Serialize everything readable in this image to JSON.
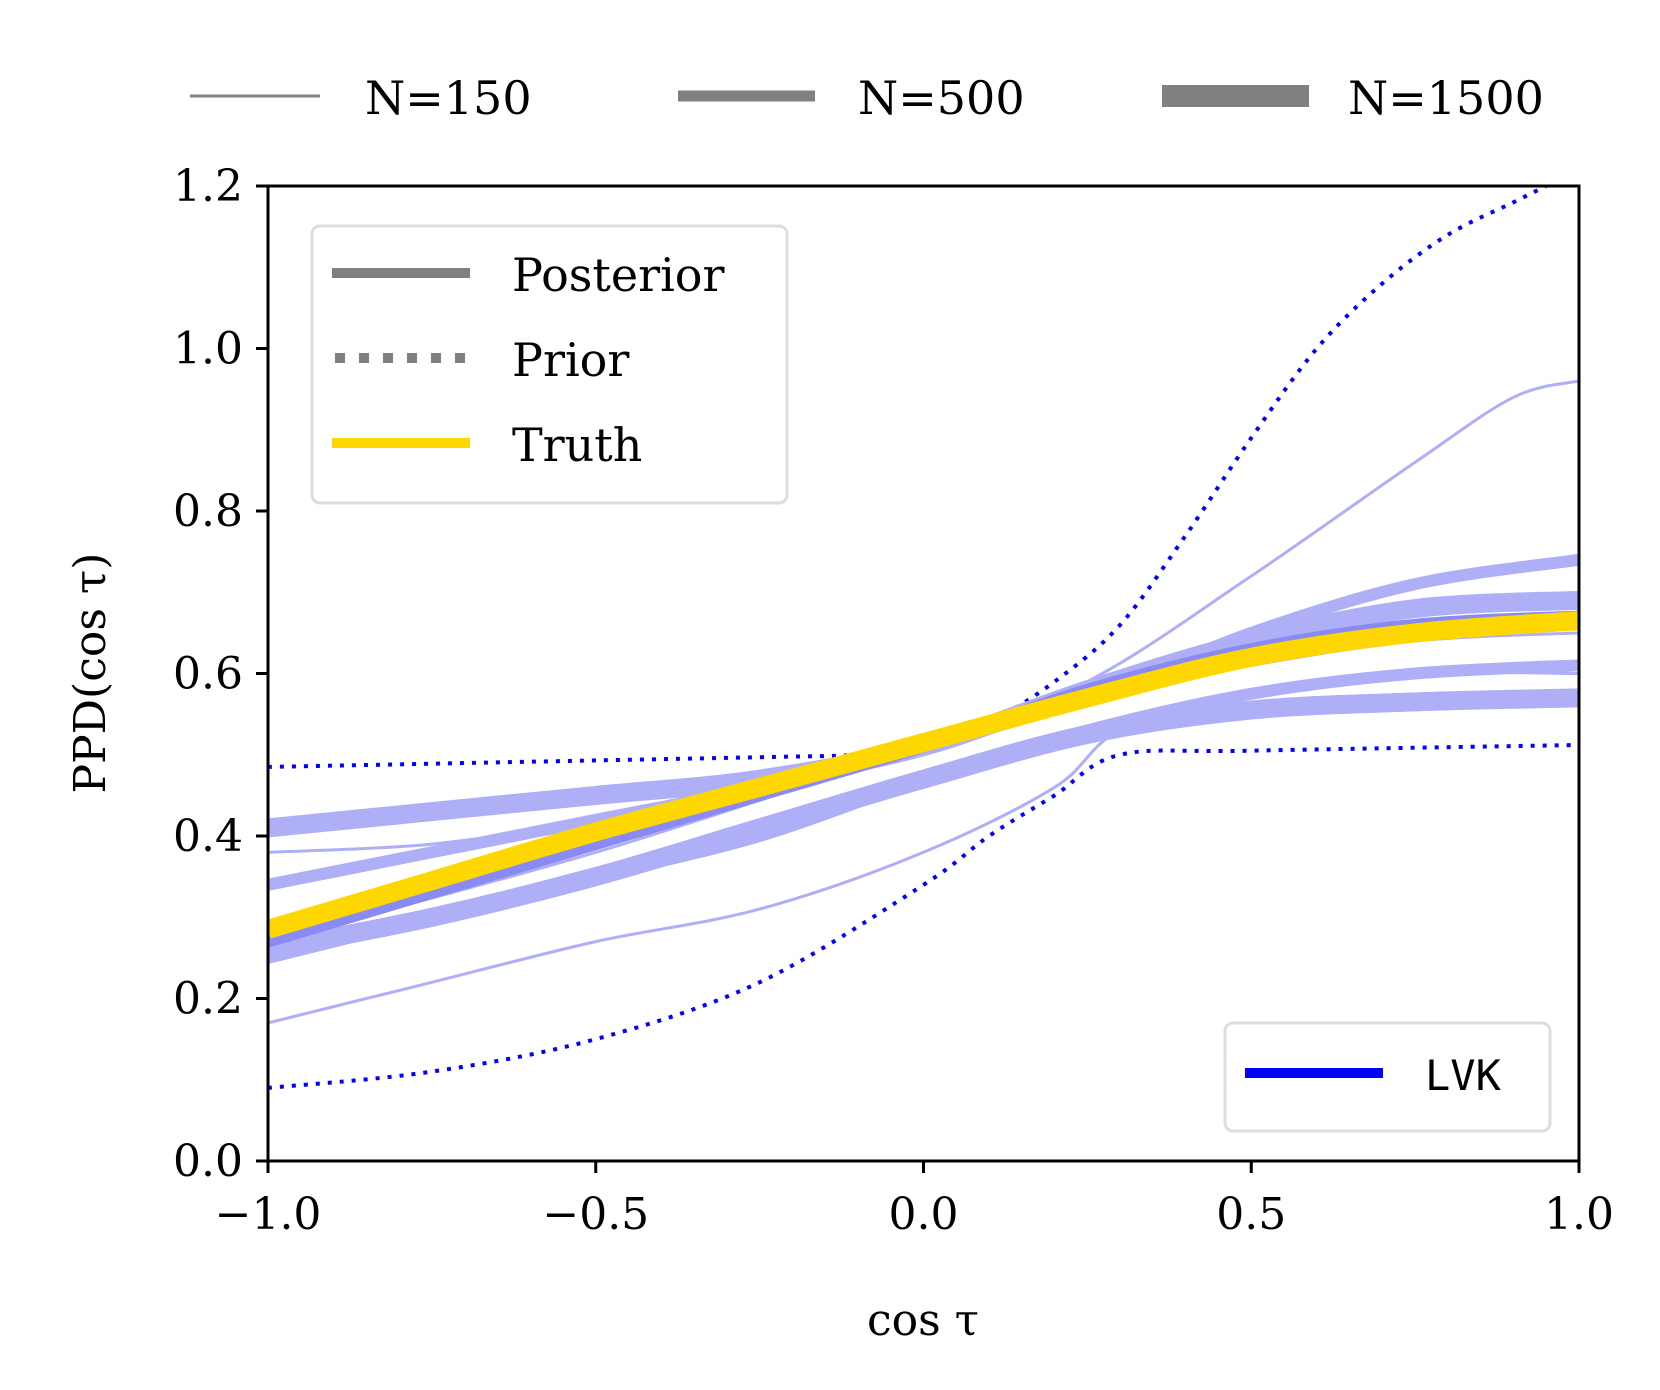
{
  "chart_data": {
    "type": "line",
    "title": "",
    "xlabel": "cos τ",
    "ylabel": "PPD(cos τ)",
    "xlim": [
      -1.0,
      1.0
    ],
    "ylim": [
      0.0,
      1.2
    ],
    "xticks": [
      -1.0,
      -0.5,
      0.0,
      0.5,
      1.0
    ],
    "xtick_labels": [
      "−1.0",
      "−0.5",
      "0.0",
      "0.5",
      "1.0"
    ],
    "yticks": [
      0.0,
      0.2,
      0.4,
      0.6,
      0.8,
      1.0,
      1.2
    ],
    "ytick_labels": [
      "0.0",
      "0.2",
      "0.4",
      "0.6",
      "0.8",
      "1.0",
      "1.2"
    ],
    "grid": false,
    "top_legend": [
      {
        "label": "N=150",
        "linewidth": "thin"
      },
      {
        "label": "N=500",
        "linewidth": "medium"
      },
      {
        "label": "N=1500",
        "linewidth": "thick"
      }
    ],
    "style_legend": [
      {
        "label": "Posterior",
        "style": "solid",
        "color": "#808080"
      },
      {
        "label": "Prior",
        "style": "dotted",
        "color": "#808080"
      },
      {
        "label": "Truth",
        "style": "solid",
        "color": "#FFD700"
      }
    ],
    "model_legend": [
      {
        "label": "LVK",
        "color": "#0000FF"
      }
    ],
    "series": [
      {
        "name": "Prior lower (LVK)",
        "style": "dotted",
        "color": "#0000FF",
        "x": [
          -1.0,
          -0.75,
          -0.5,
          -0.25,
          0.0,
          0.1,
          0.2,
          0.3,
          0.5,
          1.0
        ],
        "y": [
          0.09,
          0.11,
          0.15,
          0.22,
          0.34,
          0.4,
          0.45,
          0.5,
          0.505,
          0.512
        ]
      },
      {
        "name": "Prior upper (LVK)",
        "style": "dotted",
        "color": "#0000FF",
        "x": [
          -1.0,
          -0.75,
          -0.5,
          -0.25,
          -0.1,
          0.0,
          0.1,
          0.2,
          0.3,
          0.4,
          0.5,
          0.6,
          0.7,
          0.8,
          0.9,
          0.95
        ],
        "y": [
          0.485,
          0.489,
          0.493,
          0.497,
          0.5,
          0.51,
          0.54,
          0.59,
          0.66,
          0.77,
          0.89,
          1.0,
          1.08,
          1.14,
          1.18,
          1.2
        ]
      },
      {
        "name": "N=150 posterior lower",
        "style": "solid",
        "width": "thin",
        "color": "#AFAFF8",
        "x": [
          -1.0,
          -0.75,
          -0.5,
          -0.25,
          0.0,
          0.2,
          0.3,
          0.5,
          0.75,
          1.0
        ],
        "y": [
          0.17,
          0.22,
          0.27,
          0.31,
          0.38,
          0.46,
          0.53,
          0.58,
          0.6,
          0.6
        ]
      },
      {
        "name": "N=150 posterior upper",
        "style": "solid",
        "width": "thin",
        "color": "#AFAFF8",
        "x": [
          -1.0,
          -0.75,
          -0.5,
          -0.25,
          0.0,
          0.25,
          0.5,
          0.75,
          0.9,
          1.0
        ],
        "y": [
          0.38,
          0.39,
          0.42,
          0.46,
          0.51,
          0.59,
          0.72,
          0.86,
          0.94,
          0.96
        ]
      },
      {
        "name": "N=150 posterior (mid)",
        "style": "solid",
        "width": "thin",
        "color": "#AFAFF8",
        "x": [
          -1.0,
          -0.5,
          0.0,
          0.25,
          0.5,
          0.75,
          1.0
        ],
        "y": [
          0.27,
          0.38,
          0.51,
          0.57,
          0.61,
          0.64,
          0.65
        ]
      },
      {
        "name": "N=500 posterior lower",
        "style": "solid",
        "width": "medium",
        "color": "#AFAFF8",
        "x": [
          -1.0,
          -0.75,
          -0.5,
          -0.25,
          0.0,
          0.25,
          0.5,
          0.75,
          1.0
        ],
        "y": [
          0.25,
          0.3,
          0.35,
          0.4,
          0.47,
          0.53,
          0.575,
          0.6,
          0.61
        ]
      },
      {
        "name": "N=500 posterior upper",
        "style": "solid",
        "width": "medium",
        "color": "#AFAFF8",
        "x": [
          -1.0,
          -0.75,
          -0.5,
          -0.25,
          0.0,
          0.25,
          0.5,
          0.75,
          1.0
        ],
        "y": [
          0.34,
          0.38,
          0.42,
          0.46,
          0.51,
          0.57,
          0.65,
          0.71,
          0.74
        ]
      },
      {
        "name": "N=1500 posterior lower",
        "style": "solid",
        "width": "thick",
        "color": "#AFAFF8",
        "x": [
          -1.0,
          -0.75,
          -0.5,
          -0.25,
          0.0,
          0.25,
          0.5,
          0.75,
          1.0
        ],
        "y": [
          0.26,
          0.3,
          0.35,
          0.41,
          0.47,
          0.525,
          0.555,
          0.565,
          0.57
        ]
      },
      {
        "name": "N=1500 posterior upper",
        "style": "solid",
        "width": "thick",
        "color": "#AFAFF8",
        "x": [
          -1.0,
          -0.75,
          -0.5,
          -0.25,
          0.0,
          0.25,
          0.5,
          0.75,
          1.0
        ],
        "y": [
          0.41,
          0.43,
          0.45,
          0.47,
          0.51,
          0.58,
          0.64,
          0.68,
          0.69
        ]
      },
      {
        "name": "Posterior mean (LVK)",
        "style": "solid",
        "width": "medium",
        "color": "#8A8AF5",
        "x": [
          -1.0,
          -0.75,
          -0.5,
          -0.25,
          0.0,
          0.25,
          0.5,
          0.75,
          1.0
        ],
        "y": [
          0.27,
          0.33,
          0.39,
          0.45,
          0.51,
          0.58,
          0.63,
          0.66,
          0.67
        ]
      },
      {
        "name": "Truth",
        "style": "solid",
        "width": "thick",
        "color": "#FFD700",
        "x": [
          -1.0,
          -0.75,
          -0.5,
          -0.25,
          0.0,
          0.25,
          0.5,
          0.75,
          1.0
        ],
        "y": [
          0.285,
          0.345,
          0.405,
          0.46,
          0.515,
          0.57,
          0.62,
          0.65,
          0.665
        ]
      }
    ]
  }
}
